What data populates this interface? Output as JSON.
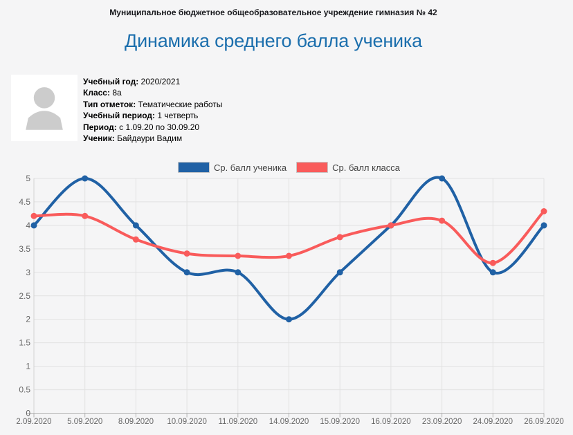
{
  "header": {
    "organization": "Муниципальное бюджетное общеобразовательное учреждение гимназия № 42"
  },
  "page": {
    "title": "Динамика среднего балла ученика"
  },
  "student_info": {
    "avatar_icon": "person-silhouette-icon",
    "rows": [
      {
        "label": "Учебный год:",
        "value": "2020/2021"
      },
      {
        "label": "Класс:",
        "value": "8а"
      },
      {
        "label": "Тип отметок:",
        "value": "Тематические работы"
      },
      {
        "label": "Учебный период:",
        "value": "1 четверть"
      },
      {
        "label": "Период:",
        "value": "с 1.09.20 по 30.09.20"
      },
      {
        "label": "Ученик:",
        "value": "Байдаури Вадим"
      }
    ]
  },
  "chart_data": {
    "type": "line",
    "line_style": "spline",
    "title": "Динамика среднего балла ученика",
    "xlabel": "",
    "ylabel": "",
    "categories": [
      "2.09.2020",
      "5.09.2020",
      "8.09.2020",
      "10.09.2020",
      "11.09.2020",
      "14.09.2020",
      "15.09.2020",
      "16.09.2020",
      "23.09.2020",
      "24.09.2020",
      "26.09.2020"
    ],
    "series": [
      {
        "name": "Ср. балл ученика",
        "color": "#2061a5",
        "values": [
          4,
          5,
          4,
          3,
          3,
          2,
          3,
          4,
          5,
          3,
          4
        ]
      },
      {
        "name": "Ср. балл класса",
        "color": "#f95b5b",
        "values": [
          4.2,
          4.2,
          3.7,
          3.4,
          3.35,
          3.35,
          3.75,
          4,
          4.1,
          3.2,
          4.3
        ]
      }
    ],
    "ylim": [
      0,
      5
    ],
    "ytick_step": 0.5,
    "grid": true,
    "legend_position": "top-center",
    "colors": {
      "title_blue": "#1c6fad",
      "grid": "#e1e1e1",
      "y_axis_line": "#d2d2d2",
      "x_axis_line": "#b3b3b3",
      "axis_label": "#666666",
      "page_background": "#f5f5f6",
      "panel_background": "#ffffff",
      "avatar_silhouette": "#cccccc"
    }
  }
}
